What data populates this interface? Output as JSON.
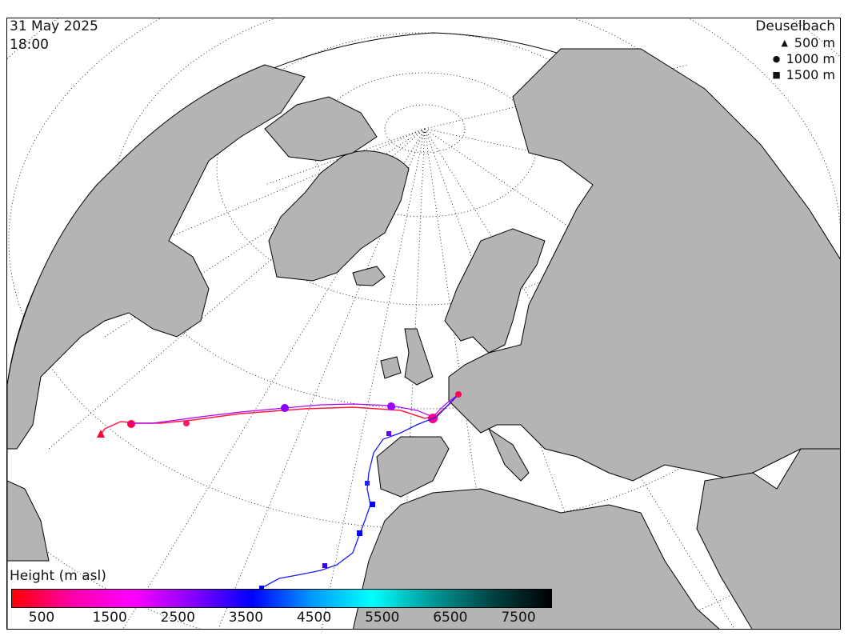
{
  "header": {
    "date": "31 May 2025",
    "time": "18:00"
  },
  "legend": {
    "station": "Deuselbach",
    "items": [
      {
        "symbol": "triangle",
        "label": "500  m"
      },
      {
        "symbol": "circle",
        "label": "1000  m"
      },
      {
        "symbol": "square",
        "label": "1500  m"
      }
    ]
  },
  "colorbar": {
    "title": "Height (m asl)",
    "ticks": [
      "500",
      "1500",
      "2500",
      "3500",
      "4500",
      "5500",
      "6500",
      "7500"
    ],
    "colors": [
      "#ff0000",
      "#ff00aa",
      "#ff00ff",
      "#8800ff",
      "#0000ff",
      "#0099ff",
      "#00ffff",
      "#009999",
      "#004444",
      "#000000"
    ]
  },
  "map": {
    "land_color": "#b4b4b4",
    "sea_color": "#ffffff"
  },
  "trajectories": [
    {
      "name": "500 m",
      "marker": "triangle",
      "color": "#ff0066"
    },
    {
      "name": "1000 m",
      "marker": "circle",
      "color": "#cc00ff"
    },
    {
      "name": "1500 m",
      "marker": "square",
      "color": "#0000ff"
    }
  ]
}
